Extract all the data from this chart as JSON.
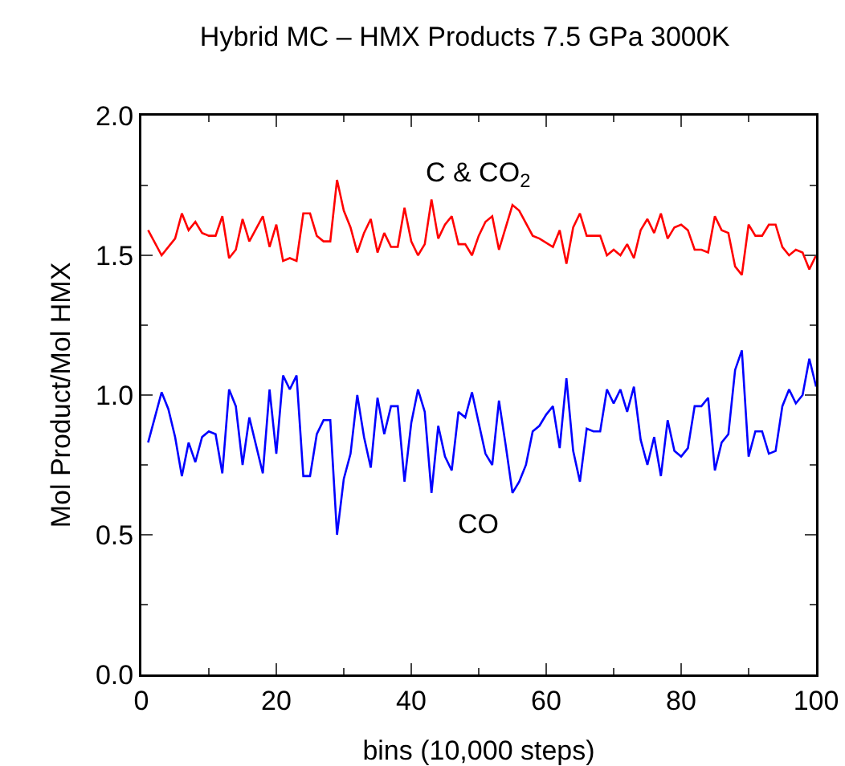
{
  "chart_data": {
    "type": "line",
    "title": "Hybrid MC – HMX Products 7.5 GPa 3000K",
    "xlabel": "bins (10,000 steps)",
    "ylabel": "Mol Product/Mol HMX",
    "xlim": [
      0,
      100
    ],
    "xticks": [
      0,
      20,
      40,
      60,
      80,
      100
    ],
    "ylim": [
      0,
      2
    ],
    "yticks": [
      {
        "value": 0,
        "label": "0.0"
      },
      {
        "value": 0.5,
        "label": "0.5"
      },
      {
        "value": 1,
        "label": "1.0"
      },
      {
        "value": 1.5,
        "label": "1.5"
      },
      {
        "value": 2,
        "label": "2.0"
      }
    ],
    "grid": false,
    "legend": false,
    "marker": "none",
    "line_style": "solid",
    "series": [
      {
        "name": "C & CO$_{2}$",
        "color": "#ff0000",
        "x": [
          1,
          3,
          5,
          6,
          7,
          8,
          9,
          10,
          11,
          12,
          13,
          14,
          15,
          16,
          18,
          19,
          20,
          21,
          22,
          23,
          24,
          25,
          26,
          27,
          28,
          29,
          30,
          31,
          32,
          33,
          34,
          35,
          36,
          37,
          38,
          39,
          40,
          41,
          42,
          43,
          44,
          45,
          46,
          47,
          48,
          49,
          50,
          51,
          52,
          53,
          55,
          56,
          58,
          59,
          61,
          62,
          63,
          64,
          65,
          66,
          68,
          69,
          70,
          71,
          72,
          73,
          74,
          75,
          76,
          77,
          78,
          79,
          80,
          81,
          82,
          83,
          84,
          85,
          86,
          87,
          88,
          89,
          90,
          91,
          92,
          93,
          94,
          95,
          96,
          97,
          98,
          99,
          100
        ],
        "values": [
          1.59,
          1.5,
          1.56,
          1.65,
          1.59,
          1.62,
          1.58,
          1.57,
          1.57,
          1.64,
          1.49,
          1.52,
          1.63,
          1.55,
          1.64,
          1.53,
          1.61,
          1.48,
          1.49,
          1.48,
          1.65,
          1.65,
          1.57,
          1.55,
          1.55,
          1.77,
          1.66,
          1.6,
          1.51,
          1.58,
          1.63,
          1.51,
          1.58,
          1.53,
          1.53,
          1.67,
          1.55,
          1.5,
          1.54,
          1.7,
          1.56,
          1.61,
          1.64,
          1.54,
          1.54,
          1.5,
          1.57,
          1.62,
          1.64,
          1.52,
          1.68,
          1.66,
          1.57,
          1.56,
          1.53,
          1.59,
          1.47,
          1.6,
          1.65,
          1.57,
          1.57,
          1.5,
          1.52,
          1.5,
          1.54,
          1.49,
          1.59,
          1.63,
          1.58,
          1.65,
          1.56,
          1.6,
          1.61,
          1.59,
          1.52,
          1.52,
          1.51,
          1.64,
          1.59,
          1.58,
          1.46,
          1.43,
          1.61,
          1.57,
          1.57,
          1.61,
          1.61,
          1.53,
          1.5,
          1.52,
          1.51,
          1.45,
          1.5
        ]
      },
      {
        "name": "CO",
        "color": "#0000ff",
        "x": [
          1,
          3,
          4,
          5,
          6,
          7,
          8,
          9,
          10,
          11,
          12,
          13,
          14,
          15,
          16,
          18,
          19,
          20,
          21,
          22,
          23,
          24,
          25,
          26,
          27,
          28,
          29,
          30,
          31,
          32,
          33,
          34,
          35,
          36,
          37,
          38,
          39,
          40,
          41,
          42,
          43,
          44,
          45,
          46,
          47,
          48,
          49,
          51,
          52,
          53,
          54,
          55,
          56,
          57,
          58,
          59,
          60,
          61,
          62,
          63,
          64,
          65,
          66,
          67,
          68,
          69,
          70,
          71,
          72,
          73,
          74,
          75,
          76,
          77,
          78,
          79,
          80,
          81,
          82,
          83,
          84,
          85,
          86,
          87,
          88,
          89,
          90,
          91,
          92,
          93,
          94,
          95,
          96,
          97,
          98,
          99,
          100
        ],
        "values": [
          0.83,
          1.01,
          0.95,
          0.85,
          0.71,
          0.83,
          0.76,
          0.85,
          0.87,
          0.86,
          0.72,
          1.02,
          0.96,
          0.75,
          0.92,
          0.72,
          1.02,
          0.79,
          1.07,
          1.02,
          1.07,
          0.71,
          0.71,
          0.86,
          0.91,
          0.91,
          0.5,
          0.7,
          0.79,
          1.0,
          0.85,
          0.74,
          0.99,
          0.86,
          0.96,
          0.96,
          0.69,
          0.9,
          1.02,
          0.94,
          0.65,
          0.89,
          0.78,
          0.73,
          0.94,
          0.92,
          1.01,
          0.79,
          0.75,
          0.98,
          0.82,
          0.65,
          0.69,
          0.75,
          0.87,
          0.89,
          0.93,
          0.96,
          0.81,
          1.06,
          0.8,
          0.69,
          0.88,
          0.87,
          0.87,
          1.02,
          0.97,
          1.02,
          0.94,
          1.03,
          0.84,
          0.75,
          0.85,
          0.71,
          0.91,
          0.8,
          0.78,
          0.81,
          0.96,
          0.96,
          0.99,
          0.73,
          0.83,
          0.86,
          1.09,
          1.16,
          0.78,
          0.87,
          0.87,
          0.79,
          0.8,
          0.96,
          1.02,
          0.97,
          1.0,
          1.13,
          1.03
        ]
      }
    ]
  }
}
